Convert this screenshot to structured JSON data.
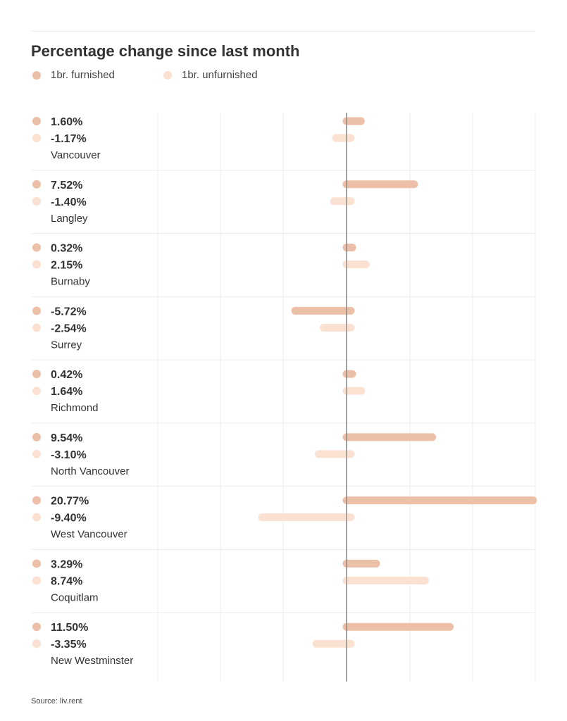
{
  "chart_data": {
    "type": "bar",
    "orientation": "horizontal",
    "title": "Percentage change since last month",
    "legend_position": "top-left",
    "grid": true,
    "xlim": [
      -15,
      15
    ],
    "series": [
      {
        "name": "1br. furnished",
        "color": "#ecc0a8",
        "labels": [
          "1.60%",
          "7.52%",
          "0.32%",
          "-5.72%",
          "0.42%",
          "9.54%",
          "20.77%",
          "3.29%",
          "11.50%"
        ]
      },
      {
        "name": "1br. unfurnished",
        "color": "#fbe1d2",
        "labels": [
          "-1.17%",
          "-1.40%",
          "2.15%",
          "-2.54%",
          "1.64%",
          "-3.10%",
          "-9.40%",
          "8.74%",
          "-3.35%"
        ]
      }
    ],
    "bar_values": [
      [
        1.6,
        7.52,
        0.32,
        -5.72,
        0.42,
        9.54,
        20.77,
        3.29,
        11.5
      ],
      [
        -1.17,
        -1.4,
        2.15,
        -2.54,
        1.64,
        -3.1,
        -9.4,
        8.74,
        -3.35
      ]
    ],
    "categories": [
      "Vancouver",
      "Langley",
      "Burnaby",
      "Surrey",
      "Richmond",
      "North Vancouver",
      "West Vancouver",
      "Coquitlam",
      "New Westminster"
    ]
  },
  "source": "Source: liv.rent"
}
